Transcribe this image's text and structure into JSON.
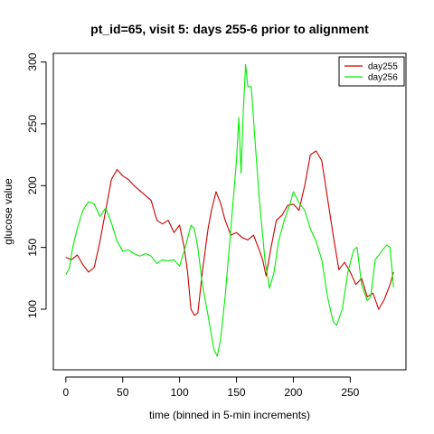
{
  "chart_data": {
    "type": "line",
    "title": "pt_id=65, visit 5: days 255-6 prior to alignment",
    "xlabel": "time (binned in 5-min increments)",
    "ylabel": "glucose value",
    "xlim": [
      -11,
      299
    ],
    "ylim": [
      51,
      307
    ],
    "xticks": [
      0,
      50,
      100,
      150,
      200,
      250
    ],
    "yticks": [
      100,
      150,
      200,
      250,
      300
    ],
    "grid": false,
    "legend_position": "top-right",
    "series": [
      {
        "name": "day255",
        "color": "#cc0000",
        "points": [
          [
            0,
            142
          ],
          [
            5,
            140
          ],
          [
            10,
            144
          ],
          [
            15,
            136
          ],
          [
            20,
            130
          ],
          [
            25,
            134
          ],
          [
            30,
            155
          ],
          [
            35,
            180
          ],
          [
            40,
            205
          ],
          [
            45,
            213
          ],
          [
            50,
            208
          ],
          [
            55,
            205
          ],
          [
            60,
            200
          ],
          [
            65,
            196
          ],
          [
            70,
            192
          ],
          [
            75,
            188
          ],
          [
            80,
            172
          ],
          [
            85,
            169
          ],
          [
            90,
            172
          ],
          [
            95,
            162
          ],
          [
            100,
            168
          ],
          [
            104,
            150
          ],
          [
            107,
            130
          ],
          [
            110,
            100
          ],
          [
            113,
            95
          ],
          [
            116,
            97
          ],
          [
            120,
            130
          ],
          [
            125,
            165
          ],
          [
            128,
            180
          ],
          [
            132,
            195
          ],
          [
            136,
            186
          ],
          [
            140,
            172
          ],
          [
            145,
            160
          ],
          [
            150,
            162
          ],
          [
            155,
            158
          ],
          [
            160,
            156
          ],
          [
            165,
            160
          ],
          [
            170,
            148
          ],
          [
            173,
            140
          ],
          [
            176,
            127
          ],
          [
            180,
            148
          ],
          [
            185,
            172
          ],
          [
            190,
            176
          ],
          [
            195,
            184
          ],
          [
            200,
            185
          ],
          [
            205,
            180
          ],
          [
            210,
            200
          ],
          [
            215,
            225
          ],
          [
            220,
            228
          ],
          [
            225,
            220
          ],
          [
            230,
            190
          ],
          [
            235,
            160
          ],
          [
            240,
            132
          ],
          [
            245,
            138
          ],
          [
            250,
            130
          ],
          [
            255,
            120
          ],
          [
            260,
            125
          ],
          [
            265,
            110
          ],
          [
            270,
            113
          ],
          [
            275,
            100
          ],
          [
            280,
            108
          ],
          [
            285,
            120
          ],
          [
            288,
            130
          ]
        ]
      },
      {
        "name": "day256",
        "color": "#00ee00",
        "points": [
          [
            0,
            128
          ],
          [
            3,
            133
          ],
          [
            6,
            150
          ],
          [
            10,
            165
          ],
          [
            15,
            180
          ],
          [
            20,
            187
          ],
          [
            25,
            185
          ],
          [
            30,
            175
          ],
          [
            35,
            182
          ],
          [
            40,
            170
          ],
          [
            45,
            155
          ],
          [
            50,
            147
          ],
          [
            55,
            148
          ],
          [
            60,
            145
          ],
          [
            65,
            143
          ],
          [
            70,
            145
          ],
          [
            75,
            143
          ],
          [
            80,
            137
          ],
          [
            85,
            140
          ],
          [
            90,
            139
          ],
          [
            95,
            140
          ],
          [
            100,
            135
          ],
          [
            105,
            150
          ],
          [
            110,
            168
          ],
          [
            113,
            165
          ],
          [
            116,
            150
          ],
          [
            120,
            120
          ],
          [
            125,
            95
          ],
          [
            130,
            68
          ],
          [
            133,
            62
          ],
          [
            136,
            75
          ],
          [
            140,
            110
          ],
          [
            145,
            165
          ],
          [
            150,
            220
          ],
          [
            152,
            255
          ],
          [
            154,
            210
          ],
          [
            156,
            260
          ],
          [
            158,
            298
          ],
          [
            160,
            280
          ],
          [
            163,
            280
          ],
          [
            166,
            240
          ],
          [
            170,
            190
          ],
          [
            175,
            140
          ],
          [
            179,
            117
          ],
          [
            183,
            130
          ],
          [
            187,
            155
          ],
          [
            192,
            172
          ],
          [
            197,
            185
          ],
          [
            200,
            195
          ],
          [
            205,
            186
          ],
          [
            210,
            180
          ],
          [
            215,
            165
          ],
          [
            220,
            155
          ],
          [
            225,
            140
          ],
          [
            230,
            110
          ],
          [
            235,
            90
          ],
          [
            238,
            87
          ],
          [
            243,
            100
          ],
          [
            248,
            130
          ],
          [
            253,
            148
          ],
          [
            256,
            150
          ],
          [
            260,
            120
          ],
          [
            265,
            107
          ],
          [
            268,
            110
          ],
          [
            272,
            140
          ],
          [
            277,
            146
          ],
          [
            282,
            152
          ],
          [
            285,
            150
          ],
          [
            288,
            118
          ]
        ]
      }
    ]
  }
}
